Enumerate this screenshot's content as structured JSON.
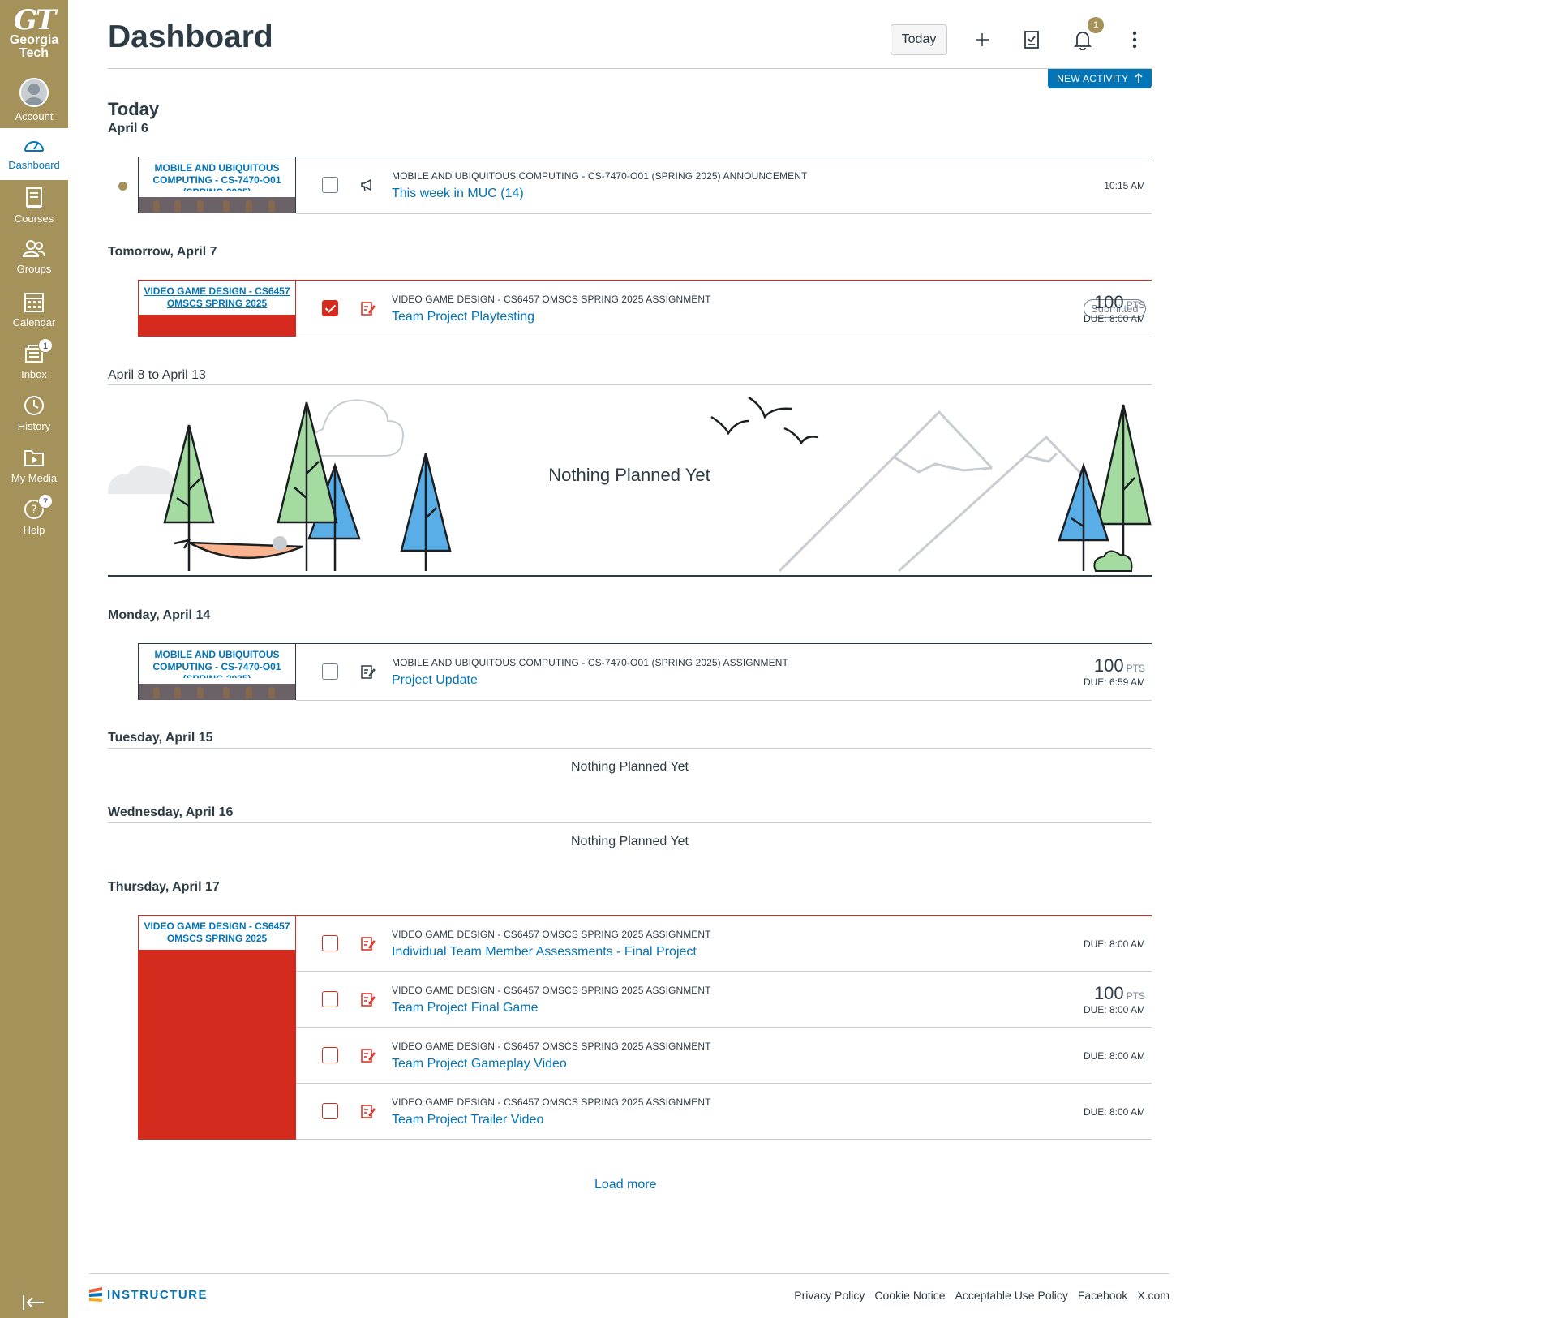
{
  "nav": {
    "logo_mark": "GT",
    "logo_line1": "Georgia",
    "logo_line2": "Tech",
    "items": [
      {
        "label": "Account"
      },
      {
        "label": "Dashboard"
      },
      {
        "label": "Courses"
      },
      {
        "label": "Groups"
      },
      {
        "label": "Calendar"
      },
      {
        "label": "Inbox",
        "badge": "1"
      },
      {
        "label": "History"
      },
      {
        "label": "My Media"
      },
      {
        "label": "Help",
        "badge": "7"
      }
    ]
  },
  "header": {
    "title": "Dashboard",
    "today_button": "Today",
    "notification_count": "1",
    "new_activity": "NEW ACTIVITY"
  },
  "colors": {
    "nav_bg": "#a4925a",
    "link": "#0374b5",
    "muc_accent": "#2d3b45",
    "vgd_accent": "#d52b1e"
  },
  "days": {
    "today": {
      "heading": "Today",
      "date": "April 6"
    },
    "tomorrow": {
      "heading": "Tomorrow, April 7"
    },
    "range": {
      "heading": "April 8 to April 13",
      "empty": "Nothing Planned Yet"
    },
    "apr14": {
      "heading": "Monday, April 14"
    },
    "apr15": {
      "heading": "Tuesday, April 15",
      "empty": "Nothing Planned Yet"
    },
    "apr16": {
      "heading": "Wednesday, April 16",
      "empty": "Nothing Planned Yet"
    },
    "apr17": {
      "heading": "Thursday, April 17"
    }
  },
  "courses": {
    "muc": "MOBILE AND UBIQUITOUS COMPUTING - CS-7470-O01 (SPRING 2025)",
    "vgd": "VIDEO GAME DESIGN - CS6457 OMSCS SPRING 2025"
  },
  "items": {
    "muc_announcement": {
      "meta": "MOBILE AND UBIQUITOUS COMPUTING - CS-7470-O01 (SPRING 2025) ANNOUNCEMENT",
      "title": "This week in MUC (14)",
      "time": "10:15 AM"
    },
    "vgd_playtesting": {
      "meta": "VIDEO GAME DESIGN - CS6457 OMSCS SPRING 2025 ASSIGNMENT",
      "title": "Team Project Playtesting",
      "status": "Submitted",
      "points": "100",
      "pts_label": "PTS",
      "due": "DUE: 8:00 AM"
    },
    "muc_project_update": {
      "meta": "MOBILE AND UBIQUITOUS COMPUTING - CS-7470-O01 (SPRING 2025) ASSIGNMENT",
      "title": "Project Update",
      "points": "100",
      "pts_label": "PTS",
      "due": "DUE: 6:59 AM"
    },
    "apr17": [
      {
        "meta": "VIDEO GAME DESIGN - CS6457 OMSCS SPRING 2025 ASSIGNMENT",
        "title": "Individual Team Member Assessments - Final Project",
        "due": "DUE: 8:00 AM"
      },
      {
        "meta": "VIDEO GAME DESIGN - CS6457 OMSCS SPRING 2025 ASSIGNMENT",
        "title": "Team Project Final Game",
        "points": "100",
        "pts_label": "PTS",
        "due": "DUE: 8:00 AM"
      },
      {
        "meta": "VIDEO GAME DESIGN - CS6457 OMSCS SPRING 2025 ASSIGNMENT",
        "title": "Team Project Gameplay Video",
        "due": "DUE: 8:00 AM"
      },
      {
        "meta": "VIDEO GAME DESIGN - CS6457 OMSCS SPRING 2025 ASSIGNMENT",
        "title": "Team Project Trailer Video",
        "due": "DUE: 8:00 AM"
      }
    ]
  },
  "load_more": "Load more",
  "footer": {
    "brand": "INSTRUCTURE",
    "links": [
      "Privacy Policy",
      "Cookie Notice",
      "Acceptable Use Policy",
      "Facebook",
      "X.com"
    ]
  }
}
